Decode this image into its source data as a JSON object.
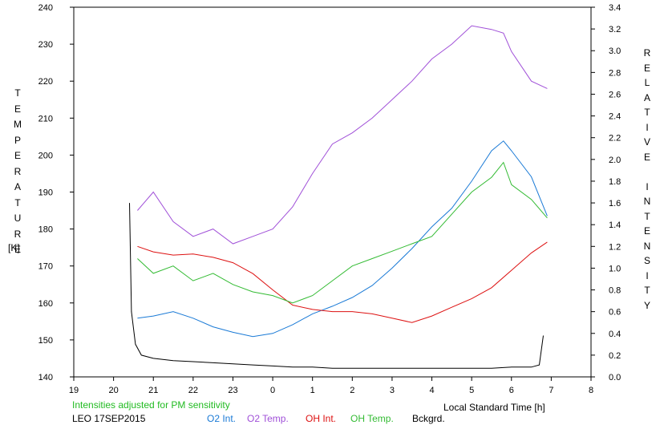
{
  "chart_data": {
    "type": "line",
    "xlabel": "Local Standard Time [h]",
    "ylabel": "TEMPERATURE",
    "ylabel_unit": "[K]",
    "y2label": "RELATIVE INTENSITY",
    "note": "Intensities adjusted for PM sensitivity",
    "footer_label": "LEO 17SEP2015",
    "xlim": [
      19,
      32
    ],
    "ylim": [
      140,
      240
    ],
    "y2lim": [
      0.0,
      3.4
    ],
    "x_tick_labels": [
      "19",
      "20",
      "21",
      "22",
      "23",
      "0",
      "1",
      "2",
      "3",
      "4",
      "5",
      "6",
      "7",
      "8"
    ],
    "y_tick_labels": [
      "140",
      "150",
      "160",
      "170",
      "180",
      "190",
      "200",
      "210",
      "220",
      "230",
      "240"
    ],
    "y2_tick_labels": [
      "0.0",
      "0.2",
      "0.4",
      "0.6",
      "0.8",
      "1.0",
      "1.2",
      "1.4",
      "1.6",
      "1.8",
      "2.0",
      "2.2",
      "2.4",
      "2.6",
      "2.8",
      "3.0",
      "3.2",
      "3.4"
    ],
    "grid": false,
    "legend_position": "bottom",
    "series": [
      {
        "name": "O2 Int.",
        "color": "#1a7ad6",
        "axis": "right",
        "x": [
          20.6,
          21.0,
          21.5,
          22.0,
          22.5,
          23.0,
          23.5,
          24.0,
          24.5,
          25.0,
          25.5,
          26.0,
          26.5,
          27.0,
          27.5,
          28.0,
          28.5,
          29.0,
          29.5,
          29.8,
          30.0,
          30.5,
          30.9
        ],
        "y": [
          0.54,
          0.56,
          0.6,
          0.54,
          0.46,
          0.41,
          0.37,
          0.4,
          0.48,
          0.58,
          0.65,
          0.73,
          0.84,
          1.0,
          1.18,
          1.38,
          1.55,
          1.8,
          2.08,
          2.17,
          2.08,
          1.84,
          1.48
        ]
      },
      {
        "name": "O2 Temp.",
        "color": "#a050d8",
        "axis": "left",
        "x": [
          20.6,
          21.0,
          21.5,
          22.0,
          22.5,
          23.0,
          23.5,
          24.0,
          24.5,
          25.0,
          25.5,
          26.0,
          26.5,
          27.0,
          27.5,
          28.0,
          28.5,
          29.0,
          29.5,
          29.8,
          30.0,
          30.5,
          30.9
        ],
        "y": [
          185,
          190,
          182,
          178,
          180,
          176,
          178,
          180,
          186,
          195,
          203,
          206,
          210,
          215,
          220,
          226,
          230,
          235,
          234,
          233,
          228,
          220,
          218
        ]
      },
      {
        "name": "OH Int.",
        "color": "#dd1111",
        "axis": "right",
        "x": [
          20.6,
          21.0,
          21.5,
          22.0,
          22.5,
          23.0,
          23.5,
          24.0,
          24.5,
          25.0,
          25.5,
          26.0,
          26.5,
          27.0,
          27.5,
          28.0,
          28.5,
          29.0,
          29.5,
          30.0,
          30.5,
          30.9
        ],
        "y": [
          1.2,
          1.15,
          1.12,
          1.13,
          1.1,
          1.05,
          0.95,
          0.8,
          0.66,
          0.62,
          0.6,
          0.6,
          0.58,
          0.54,
          0.5,
          0.56,
          0.64,
          0.72,
          0.82,
          0.98,
          1.14,
          1.24
        ]
      },
      {
        "name": "OH Temp.",
        "color": "#33bb33",
        "axis": "left",
        "x": [
          20.6,
          21.0,
          21.5,
          22.0,
          22.5,
          23.0,
          23.5,
          24.0,
          24.5,
          25.0,
          25.5,
          26.0,
          26.5,
          27.0,
          27.5,
          28.0,
          28.5,
          29.0,
          29.5,
          29.8,
          30.0,
          30.5,
          30.9
        ],
        "y": [
          172,
          168,
          170,
          166,
          168,
          165,
          163,
          162,
          160,
          162,
          166,
          170,
          172,
          174,
          176,
          178,
          184,
          190,
          194,
          198,
          192,
          188,
          183
        ]
      },
      {
        "name": "Bckgrd.",
        "color": "#000000",
        "axis": "right",
        "x": [
          20.4,
          20.45,
          20.55,
          20.7,
          21.0,
          21.5,
          22.0,
          22.5,
          23.0,
          23.5,
          24.0,
          24.5,
          25.0,
          25.5,
          26.0,
          26.5,
          27.0,
          27.5,
          28.0,
          28.5,
          29.0,
          29.5,
          30.0,
          30.5,
          30.7,
          30.8
        ],
        "y": [
          1.6,
          0.6,
          0.3,
          0.2,
          0.17,
          0.15,
          0.14,
          0.13,
          0.12,
          0.11,
          0.1,
          0.09,
          0.09,
          0.08,
          0.08,
          0.08,
          0.08,
          0.08,
          0.08,
          0.08,
          0.08,
          0.08,
          0.09,
          0.09,
          0.11,
          0.38
        ]
      }
    ]
  }
}
